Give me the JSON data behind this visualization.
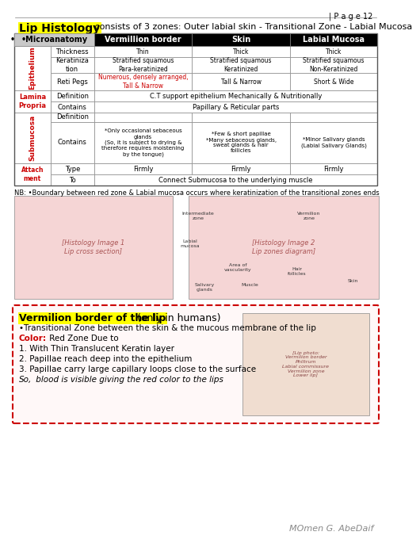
{
  "page_num": "| P a g e 12",
  "title_highlighted": "Lip Histology",
  "title_rest": " consists of 3 zones: Outer labial skin - Transitional Zone - Labial Mucosa",
  "table": {
    "col_headers": [
      "•Microanatomy",
      "Vermillion border",
      "Skin",
      "Labial Mucosa"
    ],
    "col_header_colors": [
      "#c8c8c8",
      "#000000",
      "#000000",
      "#000000"
    ],
    "col_header_text_colors": [
      "#000000",
      "#ffffff",
      "#ffffff",
      "#ffffff"
    ],
    "row_groups": [
      {
        "group_label": "Epithelium",
        "group_color": "#cc0000",
        "rows": [
          {
            "label": "Thickness",
            "cells": [
              "Thin",
              "Thick",
              "Thick"
            ]
          },
          {
            "label": "Keratinization",
            "cells": [
              "Stratified squamous\nPara-keratinized",
              "Stratified squamous\nKeratinized",
              "Stratified squamous\nNon-Keratinized"
            ]
          },
          {
            "label": "Reti Pegs",
            "cells": [
              "Numerous, densely arranged,\nTall & Narrow",
              "Tall & Narrow",
              "Short & Wide"
            ],
            "cell0_color": "#cc0000",
            "cell0_underline": "densely arranged,"
          }
        ]
      },
      {
        "group_label": "Lamina\nPropria",
        "group_color": "#cc0000",
        "rows": [
          {
            "label": "Definition",
            "cells_merged": "C.T support epithelium Mechanically & Nutritionally"
          },
          {
            "label": "Contains",
            "cells_merged": "Papillary & Reticular parts"
          }
        ]
      },
      {
        "group_label": "Submucosa",
        "group_color": "#cc0000",
        "rows": [
          {
            "label": "Definition",
            "cells": [
              "",
              "",
              ""
            ]
          },
          {
            "label": "Contains",
            "cells": [
              "*Only occasional sebaceous\nglands\n(So, it is subject to drying &\ntherefore requires moistening\nby the tongue)",
              "*Few & short papillae\n*Many sebaceous glands,\nsweat glands & hair\nfollicles",
              "*Minor Salivary glands\n(Labial Salivary Glands)"
            ]
          }
        ]
      },
      {
        "group_label": "Attachment",
        "group_color": "#cc0000",
        "rows": [
          {
            "label": "Type",
            "cells": [
              "Firmly",
              "Firmly",
              "Firmly"
            ]
          },
          {
            "label": "To",
            "cells_merged": "Connect Submucosa to the underlying muscle",
            "underline_word": "Submucosa"
          }
        ]
      }
    ]
  },
  "nb_text": "NB: •Boundary between red zone & Labial mucosa occurs where keratinization of the transitional zones ends",
  "section2_title_highlighted": "Vermilion border of the lip",
  "section2_title_rest": " (only in humans)",
  "section2_bullets": [
    "•Transitional Zone between the skin & the mucous membrane of the lip",
    "Color: Red Zone Due to",
    "1. With Thin Translucent Keratin layer",
    "2. Papillae reach deep into the epithelium",
    "3. Papillae carry large capillary loops close to the surface",
    "So, blood is visible giving the red color to the lips"
  ],
  "section2_color_label": "Color:",
  "section2_color_value": " Red Zone Due to",
  "section2_so_label": "So,",
  "colors": {
    "background": "#ffffff",
    "highlight_yellow": "#ffff00",
    "highlight_red": "#cc0000",
    "section2_border": "#cc0000",
    "section2_bg": "#fff8f8",
    "table_border": "#888888",
    "group_label_bg": "#ffffff"
  },
  "signature": "MOmen G. AbeDaif"
}
